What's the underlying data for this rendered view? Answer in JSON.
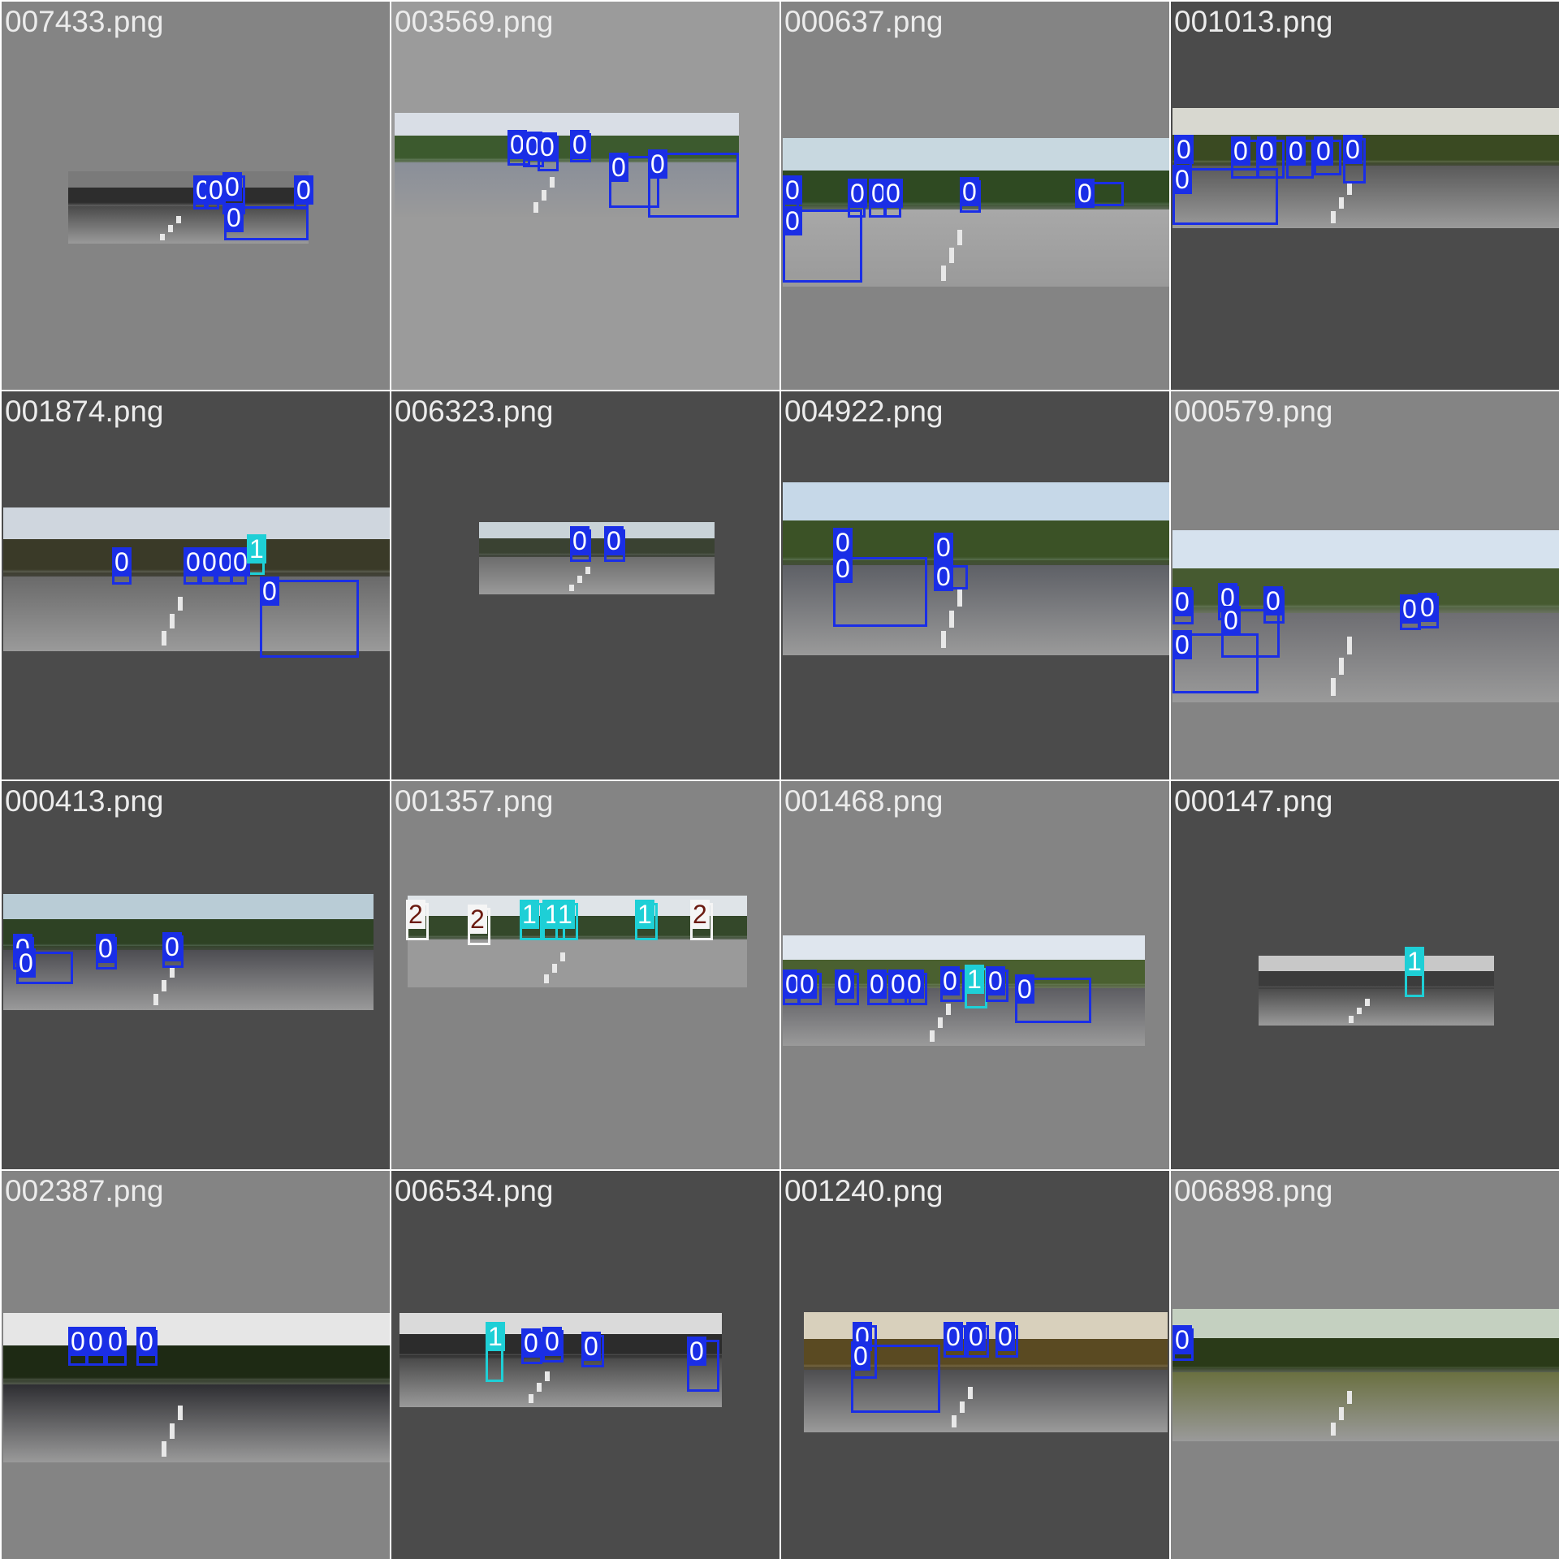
{
  "palette": {
    "class_0": "#1a2ee6",
    "class_1": "#1ecfd6",
    "class_2": "#f5f5f5"
  },
  "tiles": [
    {
      "title": "007433.png",
      "bg": "#848484",
      "photo_tone": [
        "#7a7a7a",
        "#2d2d2d",
        "#4a4a4a"
      ],
      "labels": [
        "0",
        "0",
        "0",
        "0"
      ]
    },
    {
      "title": "003569.png",
      "bg": "#9b9b9b",
      "photo_tone": [
        "#d9dee6",
        "#3c5a2e",
        "#8a8f99"
      ],
      "labels": [
        "0",
        "0",
        "0",
        "0",
        "0",
        "0"
      ]
    },
    {
      "title": "000637.png",
      "bg": "#848484",
      "photo_tone": [
        "#c8d8e0",
        "#2f4a22",
        "#a8a8a8"
      ],
      "labels": [
        "0",
        "0",
        "0",
        "0",
        "0",
        "0",
        "0"
      ]
    },
    {
      "title": "001013.png",
      "bg": "#4b4b4b",
      "photo_tone": [
        "#d8d8d0",
        "#3a4a22",
        "#5a5a5a"
      ],
      "labels": [
        "0",
        "0",
        "0",
        "0",
        "0",
        "0",
        "0"
      ]
    },
    {
      "title": "001874.png",
      "bg": "#4b4b4b",
      "photo_tone": [
        "#cfd6de",
        "#3a3a28",
        "#6a6a6a"
      ],
      "labels": [
        "0",
        "0",
        "0",
        "0",
        "0",
        "1",
        "0"
      ]
    },
    {
      "title": "006323.png",
      "bg": "#4b4b4b",
      "photo_tone": [
        "#c9d3d8",
        "#3a4232",
        "#6c6c6c"
      ],
      "labels": [
        "0",
        "0"
      ]
    },
    {
      "title": "004922.png",
      "bg": "#4b4b4b",
      "photo_tone": [
        "#c6d8e8",
        "#3b5226",
        "#5e6066"
      ],
      "labels": [
        "0",
        "0"
      ]
    },
    {
      "title": "000579.png",
      "bg": "#848484",
      "photo_tone": [
        "#d6e2ee",
        "#465a30",
        "#6e6e72"
      ],
      "labels": [
        "0",
        "0",
        "0",
        "0",
        "0",
        "0",
        "0"
      ]
    },
    {
      "title": "000413.png",
      "bg": "#4b4b4b",
      "photo_tone": [
        "#b9ccd6",
        "#2e4224",
        "#4d4d52"
      ],
      "labels": [
        "0",
        "0",
        "0"
      ]
    },
    {
      "title": "001357.png",
      "bg": "#848484",
      "photo_tone": [
        "#dfe4e8",
        "#34482a",
        "#9a9a9a"
      ],
      "labels": [
        "2",
        "2",
        "1",
        "1",
        "1",
        "1",
        "2"
      ]
    },
    {
      "title": "001468.png",
      "bg": "#848484",
      "photo_tone": [
        "#dfe6ee",
        "#4a6030",
        "#5d5d62"
      ],
      "labels": [
        "0",
        "0",
        "0",
        "0",
        "0",
        "0",
        "0",
        "1",
        "0",
        "0"
      ]
    },
    {
      "title": "000147.png",
      "bg": "#4b4b4b",
      "photo_tone": [
        "#c8c8c8",
        "#3c3c3c",
        "#4c4c4c"
      ],
      "labels": [
        "1"
      ]
    },
    {
      "title": "002387.png",
      "bg": "#848484",
      "photo_tone": [
        "#e6e6e6",
        "#1e2a14",
        "#2e2e32"
      ],
      "labels": [
        "0",
        "0",
        "0",
        "0"
      ]
    },
    {
      "title": "006534.png",
      "bg": "#4b4b4b",
      "photo_tone": [
        "#dadada",
        "#2c2c2c",
        "#4a4a4a"
      ],
      "labels": [
        "1",
        "0",
        "0",
        "0",
        "0"
      ]
    },
    {
      "title": "001240.png",
      "bg": "#4b4b4b",
      "photo_tone": [
        "#d8d0bc",
        "#5a4a22",
        "#4d4d50"
      ],
      "labels": [
        "0",
        "0",
        "0",
        "0"
      ]
    },
    {
      "title": "006898.png",
      "bg": "#848484",
      "photo_tone": [
        "#c4d0c0",
        "#2a3a18",
        "#6a7040"
      ],
      "labels": [
        "0"
      ]
    }
  ]
}
